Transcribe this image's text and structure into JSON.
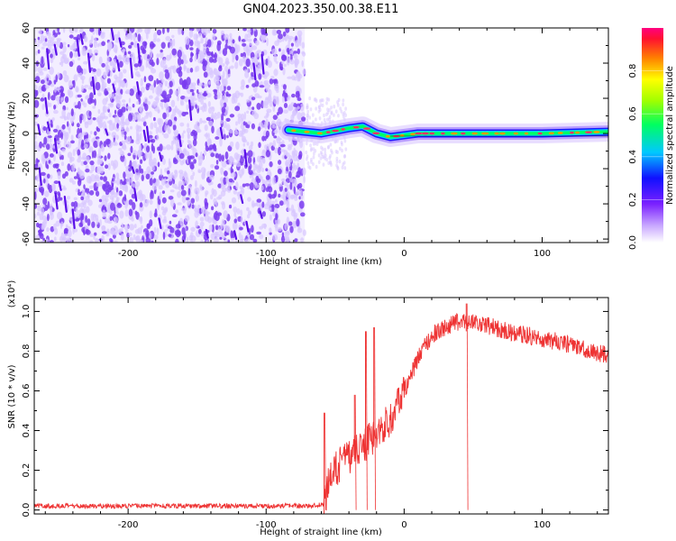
{
  "title": "GN04.2023.350.00.38.E11",
  "colors": {
    "axis": "#000000",
    "noise": "#7a3cf0",
    "noise_light": "#d7c6ff",
    "snr_line": "#ee3333",
    "band_outer": "#1a1aff",
    "band_core": "#00ff66",
    "band_peak": "#ff3366"
  },
  "chart_data": [
    {
      "type": "heatmap",
      "xlabel": "Height of straight line (km)",
      "ylabel": "Frequency (Hz)",
      "xlim": [
        -268,
        148
      ],
      "ylim": [
        -62,
        60
      ],
      "x_ticks": [
        -200,
        -100,
        0,
        100
      ],
      "x_tick_labels": [
        "-200",
        "-100",
        "0",
        "100"
      ],
      "y_ticks": [
        60,
        40,
        20,
        0,
        -20,
        -40,
        -60
      ],
      "y_tick_labels": [
        "60",
        "40",
        "20",
        "0",
        "-20",
        "-40",
        "-60"
      ],
      "colorbar": {
        "label": "Normalized spectral amplitude",
        "range": [
          0,
          1
        ],
        "ticks": [
          0.0,
          0.2,
          0.4,
          0.6,
          0.8
        ],
        "tick_labels": [
          "0.0",
          "0.2",
          "0.4",
          "0.6",
          "0.8"
        ]
      },
      "signal_band": {
        "x_start": -84,
        "center_frequency_hz": [
          [
            -84,
            2
          ],
          [
            -60,
            0
          ],
          [
            -40,
            3
          ],
          [
            -30,
            4
          ],
          [
            -20,
            0
          ],
          [
            -10,
            -2
          ],
          [
            0,
            -1
          ],
          [
            10,
            0
          ],
          [
            50,
            0
          ],
          [
            100,
            0
          ],
          [
            148,
            1
          ]
        ]
      },
      "noise_region_x": [
        -268,
        -72
      ]
    },
    {
      "type": "line",
      "xlabel": "Height of straight line (km)",
      "ylabel": "SNR (10 * v/v)",
      "multiplier_label": "(x10⁴)",
      "xlim": [
        -268,
        148
      ],
      "ylim": [
        -0.02,
        1.07
      ],
      "x_ticks": [
        -200,
        -100,
        0,
        100
      ],
      "x_tick_labels": [
        "-200",
        "-100",
        "0",
        "100"
      ],
      "y_ticks": [
        0.0,
        0.2,
        0.4,
        0.6,
        0.8,
        1.0
      ],
      "y_tick_labels": [
        "0.0",
        "0.2",
        "0.4",
        "0.6",
        "0.8",
        "1.0"
      ],
      "series": [
        {
          "x": [
            -268,
            -220,
            -180,
            -140,
            -100,
            -70,
            -58,
            -55,
            -50,
            -45,
            -40,
            -35,
            -30,
            -25,
            -20,
            -15,
            -10,
            -5,
            0,
            5,
            10,
            15,
            20,
            30,
            40,
            50,
            60,
            70,
            80,
            90,
            100,
            110,
            120,
            130,
            140,
            148
          ],
          "values": [
            0.02,
            0.02,
            0.02,
            0.02,
            0.02,
            0.02,
            0.03,
            0.12,
            0.2,
            0.24,
            0.27,
            0.3,
            0.32,
            0.35,
            0.38,
            0.42,
            0.46,
            0.52,
            0.6,
            0.68,
            0.76,
            0.83,
            0.88,
            0.92,
            0.95,
            0.95,
            0.93,
            0.91,
            0.89,
            0.88,
            0.86,
            0.85,
            0.83,
            0.81,
            0.79,
            0.78
          ]
        }
      ],
      "spikes": [
        {
          "x": -58,
          "value": 0.49
        },
        {
          "x": -28,
          "value": 0.9
        },
        {
          "x": -22,
          "value": 0.92
        },
        {
          "x": -36,
          "value": 0.58
        },
        {
          "x": 45,
          "value": 1.04
        }
      ]
    }
  ]
}
